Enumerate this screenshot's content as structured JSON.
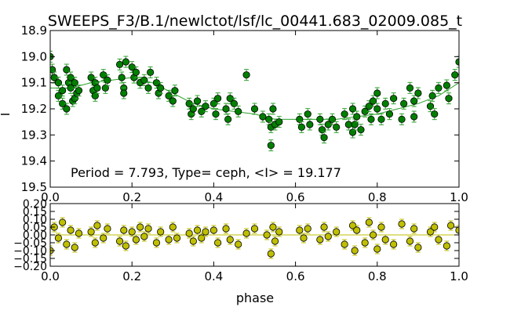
{
  "chart_data": [
    {
      "type": "scatter",
      "title": "SWEEPS_F3/B.1/newlctot/lsf/lc_00441.683_02009.085_t",
      "xlabel": "",
      "ylabel": "I",
      "xlim": [
        0.0,
        1.0
      ],
      "ylim": [
        19.5,
        18.9
      ],
      "y_inverted": true,
      "x_ticks": [
        "0.0",
        "0.2",
        "0.4",
        "0.6",
        "0.8",
        "1.0"
      ],
      "y_ticks": [
        "18.9",
        "19.0",
        "19.1",
        "19.2",
        "19.3",
        "19.4",
        "19.5"
      ],
      "annotation": "Period = 7.793, Type= ceph, <I> = 19.177",
      "marker_color": "#007f00",
      "line_color": "#2ca02c",
      "grid": false,
      "model_curve": {
        "x": [
          0.0,
          0.05,
          0.1,
          0.15,
          0.2,
          0.25,
          0.3,
          0.35,
          0.4,
          0.45,
          0.5,
          0.55,
          0.6,
          0.65,
          0.7,
          0.75,
          0.8,
          0.85,
          0.9,
          0.95,
          1.0
        ],
        "y": [
          19.12,
          19.12,
          19.1,
          19.09,
          19.08,
          19.1,
          19.14,
          19.18,
          19.2,
          19.21,
          19.22,
          19.24,
          19.24,
          19.24,
          19.24,
          19.23,
          19.22,
          19.2,
          19.18,
          19.15,
          19.1
        ]
      },
      "series": [
        {
          "x": [
            0.0,
            0.005,
            0.01,
            0.02,
            0.02,
            0.03,
            0.03,
            0.04,
            0.04,
            0.045,
            0.05,
            0.05,
            0.055,
            0.06,
            0.06,
            0.065,
            0.07,
            0.1,
            0.105,
            0.11,
            0.11,
            0.115,
            0.13,
            0.135,
            0.14,
            0.17,
            0.175,
            0.18,
            0.18,
            0.185,
            0.2,
            0.205,
            0.21,
            0.22,
            0.23,
            0.24,
            0.245,
            0.26,
            0.265,
            0.27,
            0.29,
            0.3,
            0.305,
            0.34,
            0.345,
            0.35,
            0.36,
            0.37,
            0.38,
            0.4,
            0.405,
            0.41,
            0.43,
            0.435,
            0.44,
            0.45,
            0.46,
            0.48,
            0.5,
            0.52,
            0.535,
            0.54,
            0.54,
            0.545,
            0.55,
            0.56,
            0.61,
            0.615,
            0.63,
            0.635,
            0.66,
            0.665,
            0.67,
            0.68,
            0.69,
            0.7,
            0.72,
            0.73,
            0.74,
            0.74,
            0.745,
            0.75,
            0.76,
            0.77,
            0.78,
            0.785,
            0.79,
            0.8,
            0.8,
            0.81,
            0.82,
            0.83,
            0.84,
            0.86,
            0.865,
            0.88,
            0.89,
            0.89,
            0.9,
            0.93,
            0.935,
            0.94,
            0.95,
            0.97,
            0.975,
            0.99,
            1.0
          ],
          "y": [
            19.0,
            19.05,
            19.08,
            19.1,
            19.15,
            19.13,
            19.18,
            19.2,
            19.05,
            19.1,
            19.08,
            19.12,
            19.17,
            19.1,
            19.16,
            19.14,
            19.13,
            19.08,
            19.13,
            19.1,
            19.15,
            19.12,
            19.07,
            19.12,
            19.09,
            19.03,
            19.08,
            19.12,
            19.14,
            19.02,
            19.04,
            19.08,
            19.06,
            19.1,
            19.09,
            19.12,
            19.06,
            19.1,
            19.14,
            19.12,
            19.15,
            19.17,
            19.13,
            19.18,
            19.22,
            19.2,
            19.17,
            19.21,
            19.19,
            19.18,
            19.22,
            19.16,
            19.2,
            19.24,
            19.16,
            19.18,
            19.21,
            19.07,
            19.2,
            19.23,
            19.24,
            19.27,
            19.34,
            19.2,
            19.26,
            19.25,
            19.24,
            19.27,
            19.22,
            19.26,
            19.24,
            19.28,
            19.31,
            19.26,
            19.24,
            19.27,
            19.22,
            19.26,
            19.29,
            19.2,
            19.26,
            19.23,
            19.28,
            19.21,
            19.19,
            19.24,
            19.17,
            19.14,
            19.2,
            19.24,
            19.18,
            19.22,
            19.16,
            19.24,
            19.18,
            19.12,
            19.17,
            19.23,
            19.14,
            19.19,
            19.15,
            19.22,
            19.12,
            19.11,
            19.16,
            19.07,
            19.02
          ]
        }
      ]
    },
    {
      "type": "scatter",
      "title": "",
      "xlabel": "phase",
      "ylabel": "",
      "xlim": [
        0.0,
        1.0
      ],
      "ylim": [
        -0.2,
        0.2
      ],
      "x_ticks": [
        "0.0",
        "0.2",
        "0.4",
        "0.6",
        "0.8",
        "1.0"
      ],
      "y_ticks": [
        "0.20",
        "0.15",
        "0.10",
        "0.05",
        "0.00",
        "−0.05",
        "−0.10",
        "−0.15",
        "−0.20"
      ],
      "marker_color": "#bfbf00",
      "line_color": "#bfbf00",
      "zero_line": 0.0,
      "grid": false,
      "series": [
        {
          "x": [
            0.0,
            0.01,
            0.02,
            0.03,
            0.04,
            0.05,
            0.06,
            0.07,
            0.1,
            0.11,
            0.115,
            0.13,
            0.14,
            0.17,
            0.18,
            0.185,
            0.2,
            0.21,
            0.22,
            0.23,
            0.24,
            0.26,
            0.27,
            0.29,
            0.3,
            0.31,
            0.34,
            0.35,
            0.36,
            0.37,
            0.38,
            0.4,
            0.41,
            0.43,
            0.44,
            0.46,
            0.48,
            0.5,
            0.53,
            0.54,
            0.545,
            0.55,
            0.56,
            0.61,
            0.62,
            0.63,
            0.66,
            0.67,
            0.68,
            0.7,
            0.72,
            0.74,
            0.745,
            0.75,
            0.77,
            0.78,
            0.79,
            0.8,
            0.81,
            0.82,
            0.84,
            0.86,
            0.88,
            0.89,
            0.9,
            0.93,
            0.94,
            0.95,
            0.97,
            0.98,
            1.0
          ],
          "y": [
            -0.1,
            0.05,
            -0.02,
            0.08,
            -0.06,
            0.03,
            -0.08,
            0.01,
            0.02,
            -0.05,
            0.06,
            -0.02,
            0.04,
            -0.04,
            0.03,
            -0.07,
            0.02,
            -0.03,
            0.05,
            -0.01,
            0.04,
            -0.05,
            0.02,
            -0.03,
            0.05,
            -0.02,
            0.01,
            -0.04,
            0.03,
            -0.02,
            0.02,
            0.03,
            -0.05,
            0.04,
            -0.03,
            -0.06,
            0.01,
            0.04,
            0.0,
            -0.12,
            0.05,
            -0.04,
            0.02,
            0.03,
            -0.02,
            0.04,
            -0.03,
            0.05,
            -0.01,
            0.02,
            -0.06,
            0.06,
            -0.1,
            0.03,
            -0.05,
            0.08,
            0.0,
            -0.09,
            0.05,
            -0.03,
            -0.06,
            0.07,
            -0.04,
            0.04,
            -0.08,
            0.02,
            0.05,
            -0.03,
            -0.07,
            0.06,
            0.03
          ]
        }
      ]
    }
  ]
}
